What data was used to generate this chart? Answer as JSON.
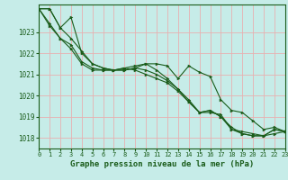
{
  "title": "Graphe pression niveau de la mer (hPa)",
  "xlim": [
    0,
    23
  ],
  "ylim": [
    1017.5,
    1024.3
  ],
  "yticks": [
    1018,
    1019,
    1020,
    1021,
    1022,
    1023
  ],
  "xticks": [
    0,
    1,
    2,
    3,
    4,
    5,
    6,
    7,
    8,
    9,
    10,
    11,
    12,
    13,
    14,
    15,
    16,
    17,
    18,
    19,
    20,
    21,
    22,
    23
  ],
  "background_color": "#c6ece8",
  "grid_color": "#e8b0b0",
  "line_color": "#1a5c1a",
  "series": [
    [
      1024.1,
      1024.1,
      1023.2,
      1023.7,
      1022.0,
      1021.5,
      1021.3,
      1021.2,
      1021.2,
      1021.3,
      1021.5,
      1021.5,
      1021.4,
      1020.8,
      1021.4,
      1021.1,
      1020.9,
      1019.8,
      1019.3,
      1019.2,
      1018.8,
      1018.4,
      1018.5,
      1018.3
    ],
    [
      1024.1,
      1024.1,
      1023.2,
      1022.7,
      1022.1,
      1021.5,
      1021.3,
      1021.2,
      1021.2,
      1021.3,
      1021.2,
      1021.0,
      1020.7,
      1020.3,
      1019.7,
      1019.2,
      1019.3,
      1019.0,
      1018.4,
      1018.2,
      1018.1,
      1018.1,
      1018.4,
      1018.3
    ],
    [
      1024.1,
      1023.3,
      1022.7,
      1022.4,
      1021.6,
      1021.3,
      1021.2,
      1021.2,
      1021.3,
      1021.4,
      1021.5,
      1021.2,
      1020.8,
      1020.3,
      1019.8,
      1019.2,
      1019.3,
      1019.0,
      1018.5,
      1018.2,
      1018.1,
      1018.1,
      1018.4,
      1018.3
    ],
    [
      1024.1,
      1023.4,
      1022.7,
      1022.2,
      1021.5,
      1021.2,
      1021.2,
      1021.2,
      1021.3,
      1021.2,
      1021.0,
      1020.8,
      1020.6,
      1020.2,
      1019.7,
      1019.2,
      1019.2,
      1019.1,
      1018.4,
      1018.3,
      1018.2,
      1018.1,
      1018.2,
      1018.3
    ]
  ]
}
